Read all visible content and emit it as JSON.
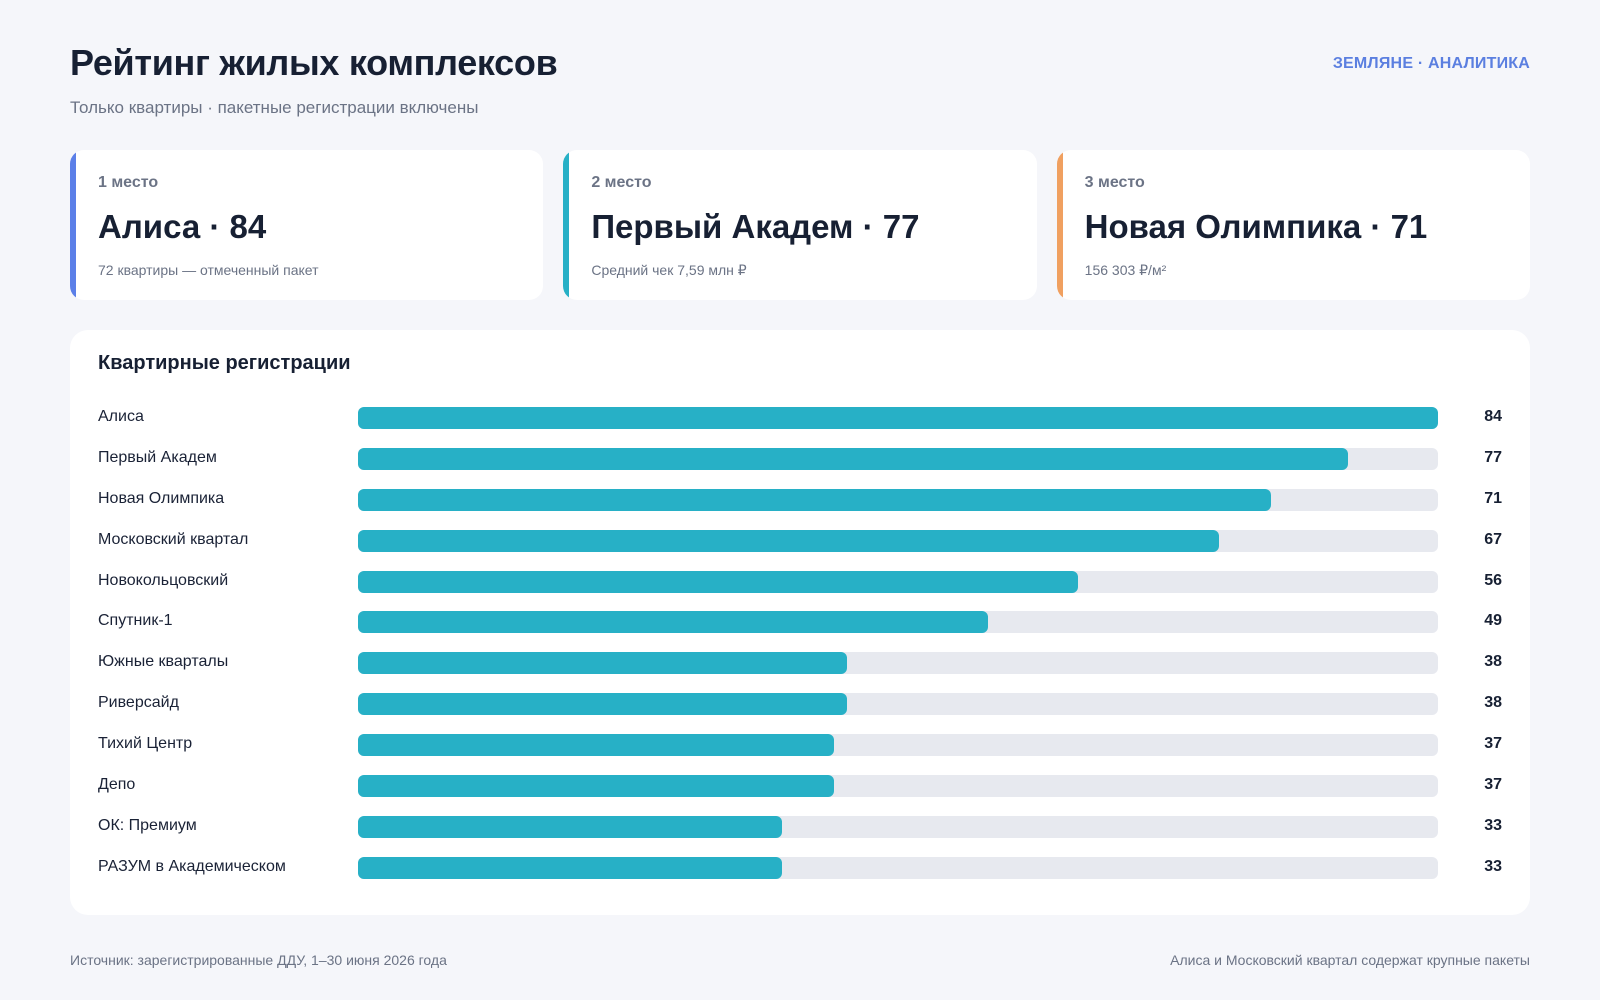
{
  "header": {
    "title": "Рейтинг жилых комплексов",
    "subtitle": "Только квартиры · пакетные регистрации включены",
    "brand": "ЗЕМЛЯНЕ · АНАЛИТИКА"
  },
  "cards": [
    {
      "rank": "1 место",
      "name": "Алиса · 84",
      "note": "72 квартиры — отмеченный пакет",
      "accent": "#5b7fe8"
    },
    {
      "rank": "2 место",
      "name": "Первый Академ · 77",
      "note": "Средний чек 7,59 млн ₽",
      "accent": "#27b0c6"
    },
    {
      "rank": "3 место",
      "name": "Новая Олимпика · 71",
      "note": "156 303 ₽/м²",
      "accent": "#f0a060"
    }
  ],
  "colors": {
    "bar": "#27b0c6",
    "track": "#e7e9ef"
  },
  "chart_data": {
    "type": "bar",
    "orientation": "horizontal",
    "title": "Квартирные регистрации",
    "xlim": [
      0,
      84
    ],
    "categories": [
      "Алиса",
      "Первый Академ",
      "Новая Олимпика",
      "Московский квартал",
      "Новокольцовский",
      "Спутник-1",
      "Южные кварталы",
      "Риверсайд",
      "Тихий Центр",
      "Депо",
      "ОК: Премиум",
      "РАЗУМ в Академическом"
    ],
    "values": [
      84,
      77,
      71,
      67,
      56,
      49,
      38,
      38,
      37,
      37,
      33,
      33
    ]
  },
  "footer": {
    "source": "Источник: зарегистрированные ДДУ, 1–30 июня 2026 года",
    "note": "Алиса и Московский квартал содержат крупные пакеты"
  }
}
